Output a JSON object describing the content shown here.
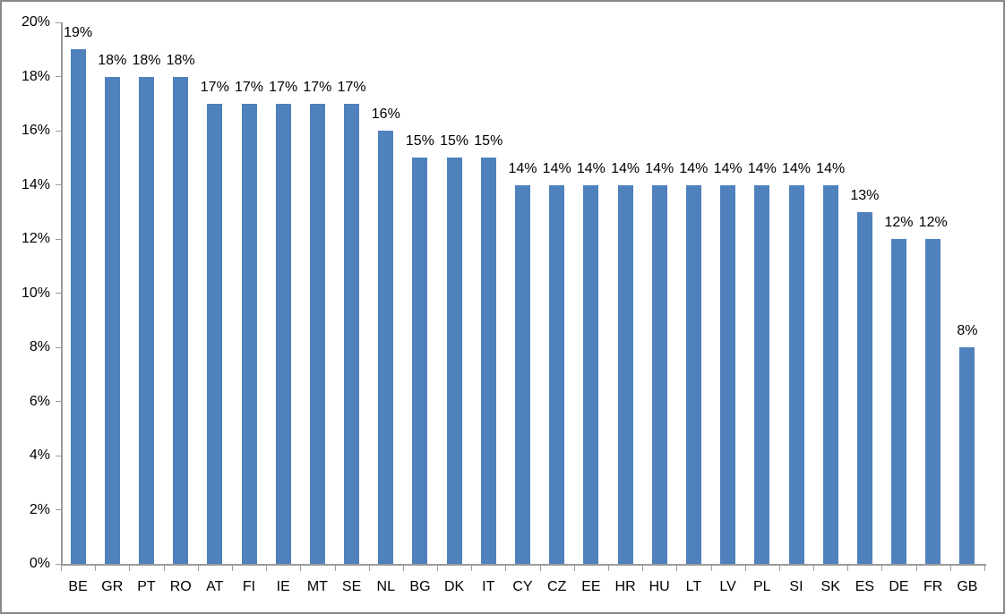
{
  "chart_data": {
    "type": "bar",
    "categories": [
      "BE",
      "GR",
      "PT",
      "RO",
      "AT",
      "FI",
      "IE",
      "MT",
      "SE",
      "NL",
      "BG",
      "DK",
      "IT",
      "CY",
      "CZ",
      "EE",
      "HR",
      "HU",
      "LT",
      "LV",
      "PL",
      "SI",
      "SK",
      "ES",
      "DE",
      "FR",
      "GB"
    ],
    "values": [
      19,
      18,
      18,
      18,
      17,
      17,
      17,
      17,
      17,
      16,
      15,
      15,
      15,
      14,
      14,
      14,
      14,
      14,
      14,
      14,
      14,
      14,
      14,
      13,
      12,
      12,
      8
    ],
    "data_labels": [
      "19%",
      "18%",
      "18%",
      "18%",
      "17%",
      "17%",
      "17%",
      "17%",
      "17%",
      "16%",
      "15%",
      "15%",
      "15%",
      "14%",
      "14%",
      "14%",
      "14%",
      "14%",
      "14%",
      "14%",
      "14%",
      "14%",
      "14%",
      "13%",
      "12%",
      "12%",
      "8%"
    ],
    "y_tick_labels": [
      "0%",
      "2%",
      "4%",
      "6%",
      "8%",
      "10%",
      "12%",
      "14%",
      "16%",
      "18%",
      "20%"
    ],
    "ylim": [
      0,
      20
    ],
    "y_tick_step": 2,
    "grid": false,
    "legend": false,
    "bar_color": "#4f81bd",
    "axis_color": "#9a9a9a",
    "border_color": "#888888",
    "text_color": "#000000"
  }
}
